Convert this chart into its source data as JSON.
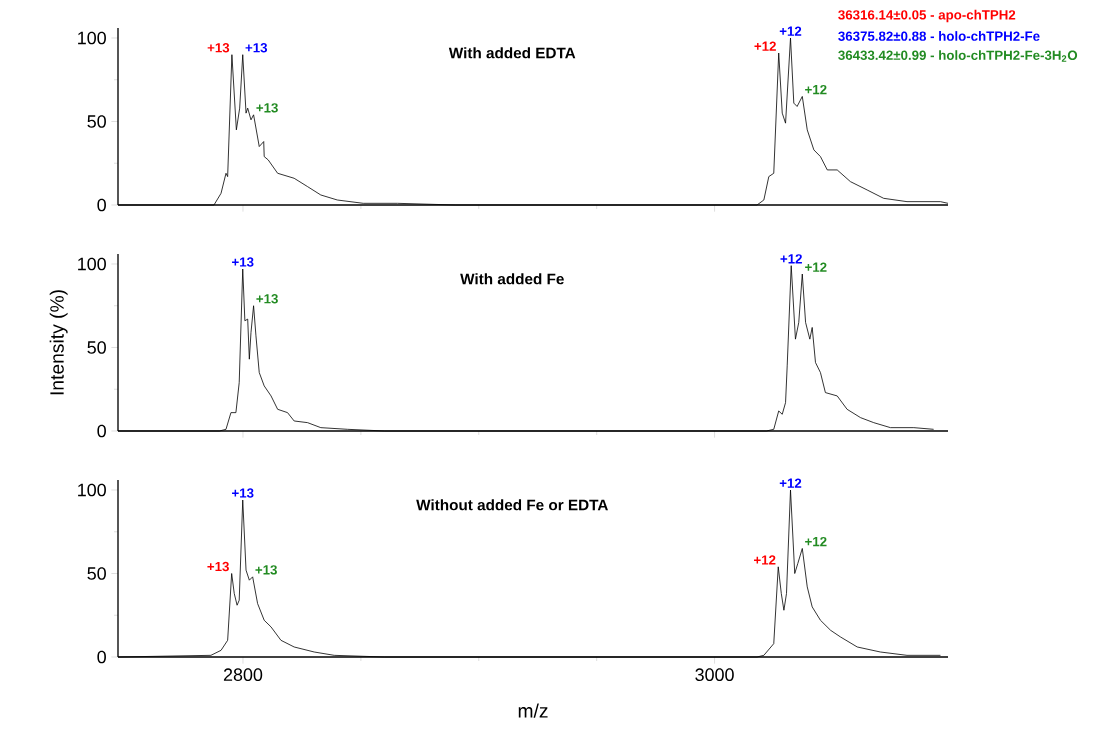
{
  "chart_data": [
    {
      "type": "line",
      "title": "With added EDTA",
      "xlim": [
        2747,
        3099
      ],
      "xticks": [
        2800,
        3000
      ],
      "ylim": [
        0,
        106
      ],
      "yticks": [
        0,
        50,
        100
      ],
      "tick_labels": "y",
      "series": [
        {
          "color": "#000000",
          "x": [
            2747,
            2787.7,
            2790.7,
            2792.8,
            2793.5,
            2795.3,
            2797.2,
            2798.6,
            2799.9,
            2801.3,
            2802,
            2803.4,
            2804.5,
            2806.9,
            2808.8,
            2809,
            2810.7,
            2814.7,
            2821.7,
            2827.4,
            2833,
            2840,
            2851,
            2865.5,
            2890,
            3018,
            3020.9,
            3023,
            3025.1,
            3027.2,
            3028.7,
            3030.1,
            3032.2,
            3033.6,
            3035,
            3037.2,
            3039.3,
            3042.1,
            3044.9,
            3047.8,
            3052,
            3057.6,
            3064.7,
            3071.7,
            3081.6,
            3095.8,
            3099
          ],
          "values": [
            0,
            0,
            7,
            19,
            17,
            90,
            45,
            58,
            90,
            55,
            58,
            51,
            54,
            35,
            38,
            29,
            27,
            19,
            16,
            11,
            6,
            3,
            1,
            1,
            0,
            0,
            3,
            17,
            19,
            91,
            55,
            49,
            100,
            61,
            59,
            65,
            45,
            33,
            29,
            21,
            21,
            14,
            9,
            4,
            2,
            2,
            1
          ]
        }
      ],
      "annotations": [
        {
          "text": "+13",
          "x": 2795.3,
          "y": 90
        },
        {
          "text": "+13",
          "x": 2799.9,
          "y": 90
        },
        {
          "text": "+13",
          "x": 2804.5,
          "y": 54
        },
        {
          "text": "+12",
          "x": 3027.2,
          "y": 91
        },
        {
          "text": "+12",
          "x": 3032.2,
          "y": 100
        },
        {
          "text": "+12",
          "x": 3037.2,
          "y": 65
        },
        "36316.14±0.05 - apo-chTPH2",
        "36375.82±0.88 - holo-chTPH2-Fe",
        "36433.42±0.99 - holo-chTPH2-Fe-3H$_{2}$O"
      ]
    },
    {
      "type": "line",
      "title": "With added Fe",
      "ylabel": "Intensity (%)",
      "xlim": [
        2747,
        3099
      ],
      "xticks": [
        2800,
        3000
      ],
      "ylim": [
        0,
        106
      ],
      "yticks": [
        0,
        50,
        100
      ],
      "tick_labels": "y",
      "series": [
        {
          "color": "#000000",
          "x": [
            2747,
            2790,
            2792.8,
            2794.9,
            2797,
            2798.4,
            2799.9,
            2800.8,
            2802,
            2802.7,
            2803.4,
            2804.5,
            2805.5,
            2806.9,
            2809,
            2811.9,
            2814.7,
            2818.9,
            2821.7,
            2827.4,
            2833,
            2844.4,
            2860,
            3022,
            3025.1,
            3027.2,
            3028.7,
            3030.1,
            3030.8,
            3032.5,
            3034.3,
            3035.7,
            3037.2,
            3038.6,
            3040.4,
            3041.4,
            3042.8,
            3044.9,
            3047,
            3052,
            3056.2,
            3061.9,
            3067.5,
            3074.6,
            3084.5,
            3092.9
          ],
          "values": [
            0,
            0,
            1,
            11,
            11,
            29,
            97,
            66,
            67,
            43,
            59,
            75,
            57,
            35,
            27,
            21,
            13,
            11,
            6,
            5,
            2,
            1,
            0,
            0,
            1,
            12,
            10,
            17,
            39,
            99,
            55,
            65,
            94,
            65,
            55,
            62,
            41,
            35,
            23,
            21,
            13,
            8,
            5,
            2,
            2,
            1
          ]
        }
      ],
      "annotations": [
        {
          "text": "+13",
          "x": 2799.9,
          "y": 97
        },
        {
          "text": "+13",
          "x": 2804.5,
          "y": 75
        },
        {
          "text": "+12",
          "x": 3032.5,
          "y": 99
        },
        {
          "text": "+12",
          "x": 3037.2,
          "y": 94
        }
      ]
    },
    {
      "type": "line",
      "title": "Without added Fe or EDTA",
      "xlabel": "m/z",
      "xlim": [
        2747,
        3099
      ],
      "xticks": [
        2800,
        3000
      ],
      "ylim": [
        0,
        106
      ],
      "yticks": [
        0,
        50,
        100
      ],
      "series": [
        {
          "color": "#000000",
          "x": [
            2747,
            2786.4,
            2790.7,
            2793.5,
            2795.2,
            2796.3,
            2797.5,
            2798.4,
            2799.9,
            2801.3,
            2802.7,
            2804.1,
            2806.2,
            2809,
            2811.9,
            2816.1,
            2821.7,
            2830.2,
            2838.7,
            2860,
            3018,
            3020.9,
            3025.1,
            3027,
            3028.3,
            3029.4,
            3030.5,
            3032.2,
            3034,
            3035.3,
            3037.2,
            3039.3,
            3041.4,
            3044.9,
            3049.2,
            3053.4,
            3060.5,
            3070.3,
            3081.6,
            3095.8
          ],
          "values": [
            0,
            1,
            4,
            10,
            50,
            38,
            31,
            34,
            94,
            52,
            46,
            48,
            32,
            22,
            18,
            10,
            6,
            3,
            1,
            0,
            0,
            1,
            8,
            54,
            38,
            28,
            38,
            100,
            50,
            56,
            65,
            42,
            30,
            22,
            16,
            12,
            6,
            3,
            1,
            1
          ]
        }
      ],
      "annotations": [
        {
          "text": "+13",
          "x": 2795.2,
          "y": 50
        },
        {
          "text": "+13",
          "x": 2799.9,
          "y": 94
        },
        {
          "text": "+13",
          "x": 2804.1,
          "y": 48
        },
        {
          "text": "+12",
          "x": 3027,
          "y": 54
        },
        {
          "text": "+12",
          "x": 3032.2,
          "y": 100
        },
        {
          "text": "+12",
          "x": 3037.2,
          "y": 65
        }
      ]
    }
  ]
}
